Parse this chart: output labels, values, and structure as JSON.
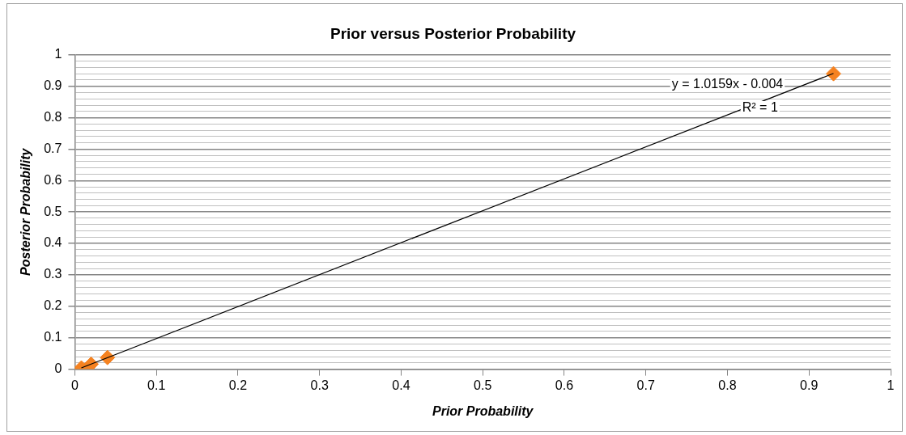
{
  "chart_data": {
    "type": "scatter",
    "title": "Prior versus Posterior Probability",
    "xlabel": "Prior Probability",
    "ylabel": "Posterior Probability",
    "series": [
      {
        "type": "scatter",
        "color": "#f58220",
        "x": [
          0.008,
          0.02,
          0.04,
          0.93
        ],
        "values": [
          0.004,
          0.016,
          0.037,
          0.94
        ]
      },
      {
        "type": "line",
        "color": "#000000",
        "x": [
          0.008,
          0.93
        ],
        "values": [
          0.004,
          0.941
        ],
        "marker": "none"
      }
    ],
    "marker": "diamond",
    "legend": false,
    "grid": "y",
    "xlim": [
      0,
      1
    ],
    "xticks": [
      0,
      0.1,
      0.2,
      0.3,
      0.4,
      0.5,
      0.6,
      0.7,
      0.8,
      0.9,
      1
    ],
    "ylim": [
      0,
      1
    ],
    "yticks": [
      0,
      {
        "value": 0.02,
        "label": null
      },
      {
        "value": 0.04,
        "label": null
      },
      {
        "value": 0.06,
        "label": null
      },
      {
        "value": 0.08,
        "label": null
      },
      0.1,
      {
        "value": 0.12,
        "label": null
      },
      {
        "value": 0.14,
        "label": null
      },
      {
        "value": 0.16,
        "label": null
      },
      {
        "value": 0.18,
        "label": null
      },
      0.2,
      {
        "value": 0.22,
        "label": null
      },
      {
        "value": 0.24,
        "label": null
      },
      {
        "value": 0.26,
        "label": null
      },
      {
        "value": 0.28,
        "label": null
      },
      0.3,
      {
        "value": 0.32,
        "label": null
      },
      {
        "value": 0.34,
        "label": null
      },
      {
        "value": 0.36,
        "label": null
      },
      {
        "value": 0.38,
        "label": null
      },
      0.4,
      {
        "value": 0.42,
        "label": null
      },
      {
        "value": 0.44,
        "label": null
      },
      {
        "value": 0.46,
        "label": null
      },
      {
        "value": 0.48,
        "label": null
      },
      0.5,
      {
        "value": 0.52,
        "label": null
      },
      {
        "value": 0.54,
        "label": null
      },
      {
        "value": 0.56,
        "label": null
      },
      {
        "value": 0.58,
        "label": null
      },
      0.6,
      {
        "value": 0.62,
        "label": null
      },
      {
        "value": 0.64,
        "label": null
      },
      {
        "value": 0.66,
        "label": null
      },
      {
        "value": 0.68,
        "label": null
      },
      0.7,
      {
        "value": 0.72,
        "label": null
      },
      {
        "value": 0.74,
        "label": null
      },
      {
        "value": 0.76,
        "label": null
      },
      {
        "value": 0.78,
        "label": null
      },
      0.8,
      {
        "value": 0.82,
        "label": null
      },
      {
        "value": 0.84,
        "label": null
      },
      {
        "value": 0.86,
        "label": null
      },
      {
        "value": 0.88,
        "label": null
      },
      0.9,
      {
        "value": 0.92,
        "label": null
      },
      {
        "value": 0.94,
        "label": null
      },
      {
        "value": 0.96,
        "label": null
      },
      {
        "value": 0.98,
        "label": null
      },
      1
    ],
    "annotations": [
      "y = 1.0159x - 0.004",
      "R² = 1"
    ]
  }
}
